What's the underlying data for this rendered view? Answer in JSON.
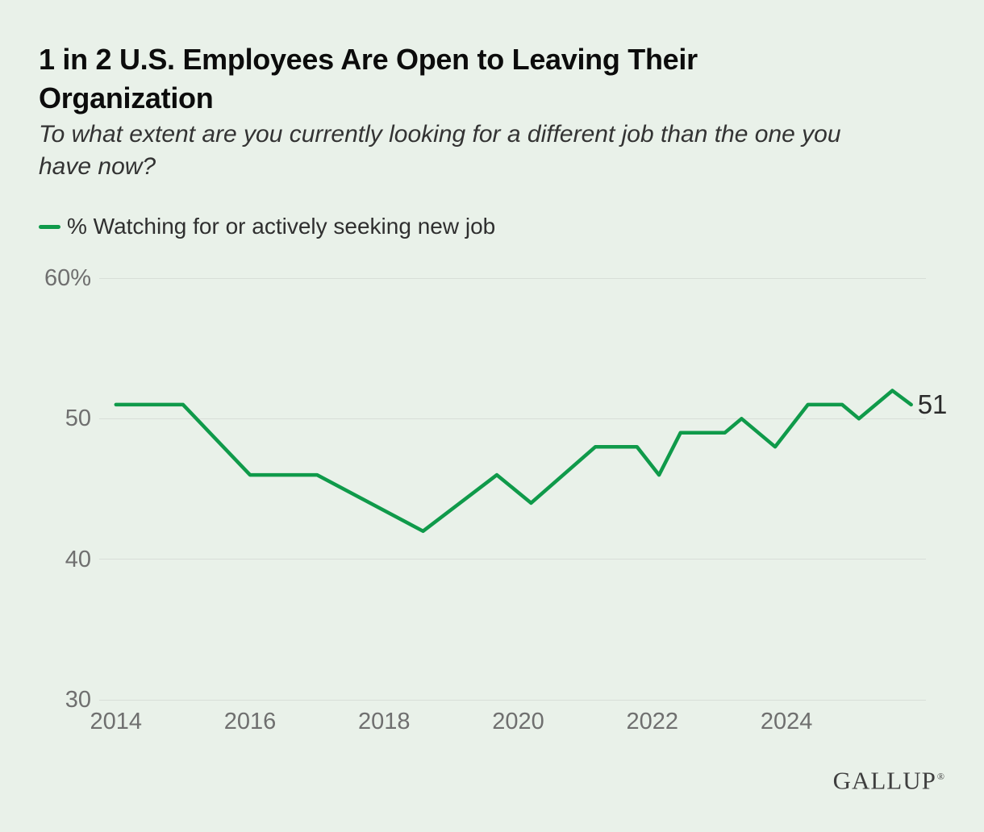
{
  "header": {
    "title": "1 in 2 U.S. Employees Are Open to Leaving Their Organization",
    "title_lines": [
      "1 in 2 U.S. Employees Are Open to Leaving Their",
      "Organization"
    ],
    "subtitle": "To what extent are you currently looking for a different job than the one you have now?",
    "subtitle_lines": [
      "To what extent are you currently looking for a different job than the one you",
      "have now?"
    ]
  },
  "legend": {
    "label": "% Watching for or actively seeking new job"
  },
  "chart_data": {
    "type": "line",
    "title": "1 in 2 U.S. Employees Are Open to Leaving Their Organization",
    "subtitle": "To what extent are you currently looking for a different job than the one you have now?",
    "xlabel": "",
    "ylabel": "",
    "xlim": [
      2013.75,
      2026.08
    ],
    "ylim": [
      30,
      60
    ],
    "grid": "horizontal-only",
    "legend_position": "top-left",
    "xticks": [
      2014,
      2016,
      2018,
      2020,
      2022,
      2024
    ],
    "yticks": [
      {
        "value": 60,
        "label": "60%"
      },
      {
        "value": 50,
        "label": "50"
      },
      {
        "value": 40,
        "label": "40"
      },
      {
        "value": 30,
        "label": "30"
      }
    ],
    "series": [
      {
        "name": "% Watching for or actively seeking new job",
        "color": "#0f9a4a",
        "x": [
          2014.0,
          2015.0,
          2016.0,
          2017.0,
          2018.58,
          2019.68,
          2020.19,
          2021.15,
          2021.77,
          2022.1,
          2022.42,
          2023.08,
          2023.33,
          2023.83,
          2024.32,
          2024.83,
          2025.08,
          2025.58,
          2025.86
        ],
        "values": [
          51,
          51,
          46,
          46,
          42,
          46,
          44,
          48,
          48,
          46,
          49,
          49,
          50,
          48,
          51,
          51,
          50,
          52,
          51
        ]
      }
    ],
    "end_label": "51"
  },
  "branding": {
    "logo_text": "GALLUP",
    "registered_mark": "®"
  },
  "colors": {
    "background": "#e9f1e9",
    "line": "#0f9a4a",
    "grid": "#d8ded8",
    "axis_label": "#6f6f6f",
    "title": "#0c0c0c",
    "subtitle": "#333333",
    "end_label": "#2b2b2b",
    "logo": "#3f3f3f"
  }
}
